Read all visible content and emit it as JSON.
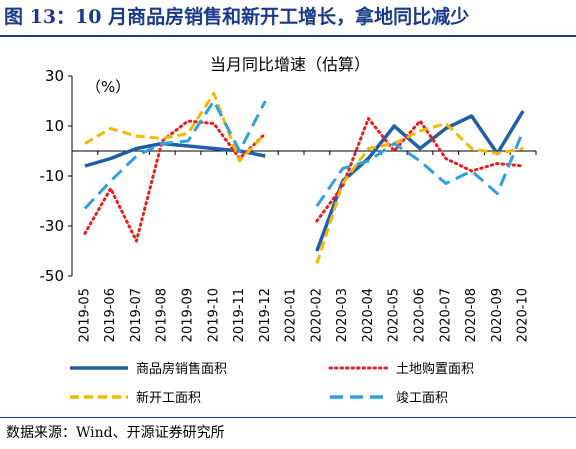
{
  "figure": {
    "title": "图 13：10 月商品房销售和新开工增长，拿地同比减少",
    "source": "数据来源：Wind、开源证券研究所"
  },
  "chart_data": {
    "type": "line",
    "title": "当月同比增速（估算）",
    "unit_label": "（%）",
    "xlabel": "",
    "ylabel": "",
    "ylim": [
      -50,
      30
    ],
    "yticks": [
      30,
      10,
      -10,
      -30,
      -50
    ],
    "grid": false,
    "legend_position": "bottom",
    "categories": [
      "2019-05",
      "2019-06",
      "2019-07",
      "2019-08",
      "2019-09",
      "2019-10",
      "2019-11",
      "2019-12",
      "2020-01",
      "2020-02",
      "2020-03",
      "2020-04",
      "2020-05",
      "2020-06",
      "2020-07",
      "2020-08",
      "2020-09",
      "2020-10"
    ],
    "series": [
      {
        "name": "商品房销售面积",
        "color": "#1f5ea8",
        "dash": "",
        "values": [
          -6,
          -3,
          1,
          3,
          2,
          1,
          0,
          -2,
          null,
          -40,
          -12,
          -3,
          10,
          1,
          9,
          14,
          -1,
          16
        ]
      },
      {
        "name": "土地购置面积",
        "color": "#e8201c",
        "dash": "dot",
        "values": [
          -33,
          -15,
          -36,
          4,
          12,
          11,
          -3,
          7,
          null,
          -28,
          -14,
          13,
          0,
          12,
          -3,
          -8,
          -5,
          -6
        ]
      },
      {
        "name": "新开工面积",
        "color": "#f5b800",
        "dash": "dash",
        "values": [
          3,
          9,
          6,
          5,
          7,
          23,
          -4,
          7,
          null,
          -45,
          -13,
          1,
          3,
          8,
          11,
          1,
          -1,
          1
        ]
      },
      {
        "name": "竣工面积",
        "color": "#2fa0e0",
        "dash": "longdash",
        "values": [
          -23,
          -12,
          -2,
          3,
          4,
          20,
          0,
          20,
          null,
          -22,
          -7,
          -4,
          3,
          -4,
          -13,
          -8,
          -17,
          8
        ]
      }
    ]
  }
}
